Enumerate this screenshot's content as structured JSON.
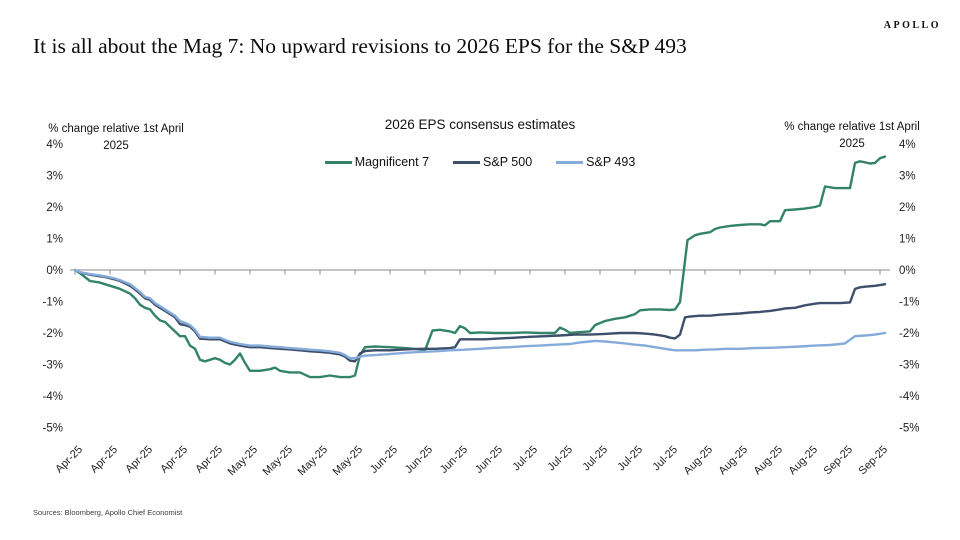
{
  "page": {
    "logo": "APOLLO",
    "title": "It is all about the Mag 7: No upward revisions to 2026 EPS for the S&P 493",
    "source_note": "Sources: Bloomberg, Apollo Chief Economist"
  },
  "chart": {
    "caption_left": {
      "line1": "% change relative 1st April",
      "line2": "2025"
    },
    "caption_right": {
      "line1": "% change relative 1st April",
      "line2": "2025"
    },
    "zero_line_color": "#a0a0a0",
    "tick_color": "#8c8c8c"
  },
  "chart_data": {
    "type": "line",
    "title": "2026 EPS consensus estimates",
    "ylabel": "% change relative 1st April 2025",
    "ylim": [
      -5,
      4
    ],
    "ytick_values": [
      4,
      3,
      2,
      1,
      0,
      -1,
      -2,
      -3,
      -4,
      -5
    ],
    "ytick_labels": [
      "4%",
      "3%",
      "2%",
      "1%",
      "0%",
      "-1%",
      "-2%",
      "-3%",
      "-4%",
      "-5%"
    ],
    "x_unit": "days since 1 Apr 2025, weekly ticks",
    "xlim": [
      0,
      163
    ],
    "xtick_days": [
      0,
      7,
      14,
      21,
      28,
      35,
      42,
      49,
      56,
      63,
      70,
      77,
      84,
      91,
      98,
      105,
      112,
      119,
      126,
      133,
      140,
      147,
      154,
      161
    ],
    "xtick_labels": [
      "Apr-25",
      "Apr-25",
      "Apr-25",
      "Apr-25",
      "Apr-25",
      "May-25",
      "May-25",
      "May-25",
      "May-25",
      "Jun-25",
      "Jun-25",
      "Jun-25",
      "Jun-25",
      "Jul-25",
      "Jul-25",
      "Jul-25",
      "Jul-25",
      "Jul-25",
      "Aug-25",
      "Aug-25",
      "Aug-25",
      "Aug-25",
      "Sep-25",
      "Sep-25"
    ],
    "grid": false,
    "zero_line": true,
    "legend_position": "top",
    "series": [
      {
        "name": "Magnificent 7",
        "color": "#33836a",
        "points": [
          [
            0,
            0
          ],
          [
            1,
            -0.1
          ],
          [
            3,
            -0.35
          ],
          [
            5,
            -0.4
          ],
          [
            6,
            -0.45
          ],
          [
            8,
            -0.55
          ],
          [
            9,
            -0.6
          ],
          [
            11,
            -0.75
          ],
          [
            12,
            -0.9
          ],
          [
            13,
            -1.1
          ],
          [
            14,
            -1.2
          ],
          [
            15,
            -1.25
          ],
          [
            16,
            -1.45
          ],
          [
            17,
            -1.6
          ],
          [
            18,
            -1.65
          ],
          [
            20,
            -1.95
          ],
          [
            21,
            -2.1
          ],
          [
            22,
            -2.1
          ],
          [
            23,
            -2.4
          ],
          [
            24,
            -2.5
          ],
          [
            25,
            -2.85
          ],
          [
            26,
            -2.9
          ],
          [
            27,
            -2.85
          ],
          [
            28,
            -2.8
          ],
          [
            29,
            -2.85
          ],
          [
            30,
            -2.95
          ],
          [
            31,
            -3.0
          ],
          [
            32,
            -2.85
          ],
          [
            33,
            -2.65
          ],
          [
            34,
            -2.95
          ],
          [
            35,
            -3.2
          ],
          [
            37,
            -3.2
          ],
          [
            39,
            -3.15
          ],
          [
            40,
            -3.1
          ],
          [
            41,
            -3.2
          ],
          [
            43,
            -3.25
          ],
          [
            45,
            -3.25
          ],
          [
            47,
            -3.4
          ],
          [
            49,
            -3.4
          ],
          [
            51,
            -3.35
          ],
          [
            53,
            -3.4
          ],
          [
            55,
            -3.4
          ],
          [
            56,
            -3.35
          ],
          [
            57,
            -2.7
          ],
          [
            58,
            -2.45
          ],
          [
            60,
            -2.43
          ],
          [
            63,
            -2.45
          ],
          [
            66,
            -2.48
          ],
          [
            69,
            -2.52
          ],
          [
            70,
            -2.55
          ],
          [
            71.5,
            -1.92
          ],
          [
            73,
            -1.9
          ],
          [
            75,
            -1.95
          ],
          [
            76,
            -2.0
          ],
          [
            77,
            -1.78
          ],
          [
            78,
            -1.85
          ],
          [
            79,
            -2.0
          ],
          [
            81,
            -1.98
          ],
          [
            84,
            -2.0
          ],
          [
            87,
            -2.0
          ],
          [
            90,
            -1.98
          ],
          [
            93,
            -2.0
          ],
          [
            96,
            -2.0
          ],
          [
            97,
            -1.83
          ],
          [
            98,
            -1.9
          ],
          [
            99,
            -2.0
          ],
          [
            101,
            -1.97
          ],
          [
            103,
            -1.95
          ],
          [
            104,
            -1.75
          ],
          [
            106,
            -1.62
          ],
          [
            108,
            -1.55
          ],
          [
            110,
            -1.5
          ],
          [
            112,
            -1.4
          ],
          [
            113,
            -1.28
          ],
          [
            115,
            -1.25
          ],
          [
            117,
            -1.25
          ],
          [
            119,
            -1.27
          ],
          [
            120,
            -1.25
          ],
          [
            121,
            -1.02
          ],
          [
            122.5,
            0.95
          ],
          [
            123,
            1.0
          ],
          [
            124,
            1.1
          ],
          [
            125,
            1.15
          ],
          [
            127,
            1.2
          ],
          [
            128,
            1.3
          ],
          [
            129,
            1.35
          ],
          [
            131,
            1.4
          ],
          [
            133,
            1.43
          ],
          [
            135,
            1.45
          ],
          [
            137,
            1.45
          ],
          [
            138,
            1.42
          ],
          [
            139,
            1.55
          ],
          [
            141,
            1.55
          ],
          [
            142,
            1.9
          ],
          [
            144,
            1.92
          ],
          [
            146,
            1.95
          ],
          [
            148,
            2.0
          ],
          [
            149,
            2.05
          ],
          [
            150,
            2.65
          ],
          [
            152,
            2.6
          ],
          [
            154,
            2.6
          ],
          [
            155,
            2.6
          ],
          [
            156,
            3.4
          ],
          [
            157,
            3.45
          ],
          [
            158,
            3.42
          ],
          [
            159,
            3.38
          ],
          [
            160,
            3.4
          ],
          [
            161,
            3.55
          ],
          [
            162,
            3.6
          ]
        ]
      },
      {
        "name": "S&P 500",
        "color": "#3e4f6b",
        "points": [
          [
            0,
            0
          ],
          [
            1,
            -0.08
          ],
          [
            3,
            -0.15
          ],
          [
            5,
            -0.2
          ],
          [
            6,
            -0.22
          ],
          [
            8,
            -0.3
          ],
          [
            9,
            -0.35
          ],
          [
            11,
            -0.5
          ],
          [
            12,
            -0.62
          ],
          [
            13,
            -0.75
          ],
          [
            14,
            -0.9
          ],
          [
            15,
            -0.95
          ],
          [
            16,
            -1.1
          ],
          [
            17,
            -1.2
          ],
          [
            18,
            -1.3
          ],
          [
            20,
            -1.5
          ],
          [
            21,
            -1.72
          ],
          [
            22,
            -1.75
          ],
          [
            23,
            -1.8
          ],
          [
            24,
            -1.95
          ],
          [
            25,
            -2.18
          ],
          [
            27,
            -2.2
          ],
          [
            29,
            -2.2
          ],
          [
            31,
            -2.33
          ],
          [
            33,
            -2.4
          ],
          [
            35,
            -2.45
          ],
          [
            37,
            -2.45
          ],
          [
            39,
            -2.48
          ],
          [
            41,
            -2.5
          ],
          [
            43,
            -2.52
          ],
          [
            45,
            -2.55
          ],
          [
            47,
            -2.58
          ],
          [
            49,
            -2.6
          ],
          [
            51,
            -2.63
          ],
          [
            53,
            -2.68
          ],
          [
            54,
            -2.75
          ],
          [
            55,
            -2.88
          ],
          [
            56,
            -2.9
          ],
          [
            57,
            -2.65
          ],
          [
            58,
            -2.57
          ],
          [
            60,
            -2.55
          ],
          [
            63,
            -2.55
          ],
          [
            66,
            -2.52
          ],
          [
            69,
            -2.5
          ],
          [
            72,
            -2.5
          ],
          [
            75,
            -2.48
          ],
          [
            76,
            -2.45
          ],
          [
            77,
            -2.2
          ],
          [
            79,
            -2.2
          ],
          [
            82,
            -2.2
          ],
          [
            85,
            -2.17
          ],
          [
            88,
            -2.15
          ],
          [
            91,
            -2.12
          ],
          [
            94,
            -2.1
          ],
          [
            97,
            -2.08
          ],
          [
            100,
            -2.05
          ],
          [
            103,
            -2.05
          ],
          [
            106,
            -2.03
          ],
          [
            109,
            -2.0
          ],
          [
            112,
            -2.0
          ],
          [
            114,
            -2.02
          ],
          [
            116,
            -2.05
          ],
          [
            118,
            -2.1
          ],
          [
            119,
            -2.15
          ],
          [
            120,
            -2.17
          ],
          [
            121,
            -2.05
          ],
          [
            122,
            -1.5
          ],
          [
            123,
            -1.48
          ],
          [
            125,
            -1.45
          ],
          [
            127,
            -1.45
          ],
          [
            129,
            -1.42
          ],
          [
            131,
            -1.4
          ],
          [
            133,
            -1.38
          ],
          [
            135,
            -1.35
          ],
          [
            137,
            -1.33
          ],
          [
            139,
            -1.3
          ],
          [
            141,
            -1.25
          ],
          [
            142,
            -1.22
          ],
          [
            144,
            -1.2
          ],
          [
            146,
            -1.12
          ],
          [
            148,
            -1.07
          ],
          [
            149,
            -1.05
          ],
          [
            151,
            -1.05
          ],
          [
            153,
            -1.05
          ],
          [
            155,
            -1.03
          ],
          [
            156,
            -0.6
          ],
          [
            157,
            -0.55
          ],
          [
            158,
            -0.53
          ],
          [
            160,
            -0.5
          ],
          [
            161,
            -0.48
          ],
          [
            162,
            -0.45
          ]
        ]
      },
      {
        "name": "S&P 493",
        "color": "#85abdb",
        "points": [
          [
            0,
            0
          ],
          [
            1,
            -0.07
          ],
          [
            3,
            -0.13
          ],
          [
            5,
            -0.17
          ],
          [
            6,
            -0.2
          ],
          [
            8,
            -0.27
          ],
          [
            9,
            -0.32
          ],
          [
            11,
            -0.45
          ],
          [
            12,
            -0.57
          ],
          [
            13,
            -0.7
          ],
          [
            14,
            -0.85
          ],
          [
            15,
            -0.9
          ],
          [
            16,
            -1.05
          ],
          [
            17,
            -1.15
          ],
          [
            18,
            -1.25
          ],
          [
            20,
            -1.45
          ],
          [
            21,
            -1.62
          ],
          [
            22,
            -1.68
          ],
          [
            23,
            -1.75
          ],
          [
            24,
            -1.9
          ],
          [
            25,
            -2.12
          ],
          [
            27,
            -2.15
          ],
          [
            29,
            -2.15
          ],
          [
            31,
            -2.28
          ],
          [
            33,
            -2.35
          ],
          [
            35,
            -2.4
          ],
          [
            37,
            -2.4
          ],
          [
            39,
            -2.43
          ],
          [
            41,
            -2.45
          ],
          [
            43,
            -2.48
          ],
          [
            45,
            -2.5
          ],
          [
            47,
            -2.53
          ],
          [
            49,
            -2.55
          ],
          [
            51,
            -2.58
          ],
          [
            53,
            -2.63
          ],
          [
            54,
            -2.7
          ],
          [
            55,
            -2.8
          ],
          [
            56,
            -2.8
          ],
          [
            57,
            -2.75
          ],
          [
            58,
            -2.72
          ],
          [
            60,
            -2.7
          ],
          [
            63,
            -2.67
          ],
          [
            66,
            -2.63
          ],
          [
            69,
            -2.6
          ],
          [
            72,
            -2.58
          ],
          [
            75,
            -2.55
          ],
          [
            78,
            -2.53
          ],
          [
            81,
            -2.5
          ],
          [
            84,
            -2.47
          ],
          [
            87,
            -2.45
          ],
          [
            90,
            -2.42
          ],
          [
            93,
            -2.4
          ],
          [
            96,
            -2.37
          ],
          [
            99,
            -2.35
          ],
          [
            101,
            -2.3
          ],
          [
            103,
            -2.27
          ],
          [
            104,
            -2.25
          ],
          [
            106,
            -2.27
          ],
          [
            108,
            -2.3
          ],
          [
            110,
            -2.33
          ],
          [
            112,
            -2.37
          ],
          [
            114,
            -2.4
          ],
          [
            116,
            -2.45
          ],
          [
            118,
            -2.5
          ],
          [
            120,
            -2.55
          ],
          [
            122,
            -2.55
          ],
          [
            124,
            -2.55
          ],
          [
            126,
            -2.53
          ],
          [
            128,
            -2.52
          ],
          [
            130,
            -2.5
          ],
          [
            133,
            -2.5
          ],
          [
            136,
            -2.48
          ],
          [
            139,
            -2.47
          ],
          [
            142,
            -2.45
          ],
          [
            145,
            -2.43
          ],
          [
            148,
            -2.4
          ],
          [
            151,
            -2.38
          ],
          [
            153,
            -2.35
          ],
          [
            154,
            -2.33
          ],
          [
            156,
            -2.1
          ],
          [
            158,
            -2.08
          ],
          [
            160,
            -2.05
          ],
          [
            162,
            -2.0
          ]
        ]
      }
    ]
  }
}
